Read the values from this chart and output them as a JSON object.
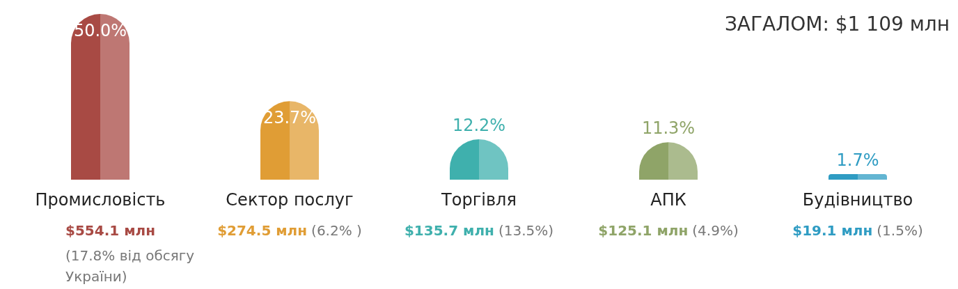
{
  "chart_data": {
    "type": "bar",
    "title": "ЗАГАЛОМ: $1 109 млн",
    "categories": [
      "Промисловість",
      "Сектор послуг",
      "Торгівля",
      "АПК",
      "Будівництво"
    ],
    "values": [
      50.0,
      23.7,
      12.2,
      11.3,
      1.7
    ],
    "value_labels": [
      "50.0%",
      "23.7%",
      "12.2%",
      "11.3%",
      "1.7%"
    ],
    "colors": [
      "#a84a44",
      "#e09d35",
      "#3fb0ad",
      "#8fa468",
      "#2f9cc3"
    ],
    "annotations": [
      "$554.1 млн",
      "(17.8% від обсягу України)",
      "$274.5 млн",
      "(6.2% )",
      "$135.7 млн",
      "(13.5%)",
      "$125.1 млн",
      "(4.9%)",
      "$19.1 млн",
      "(1.5%)"
    ]
  }
}
